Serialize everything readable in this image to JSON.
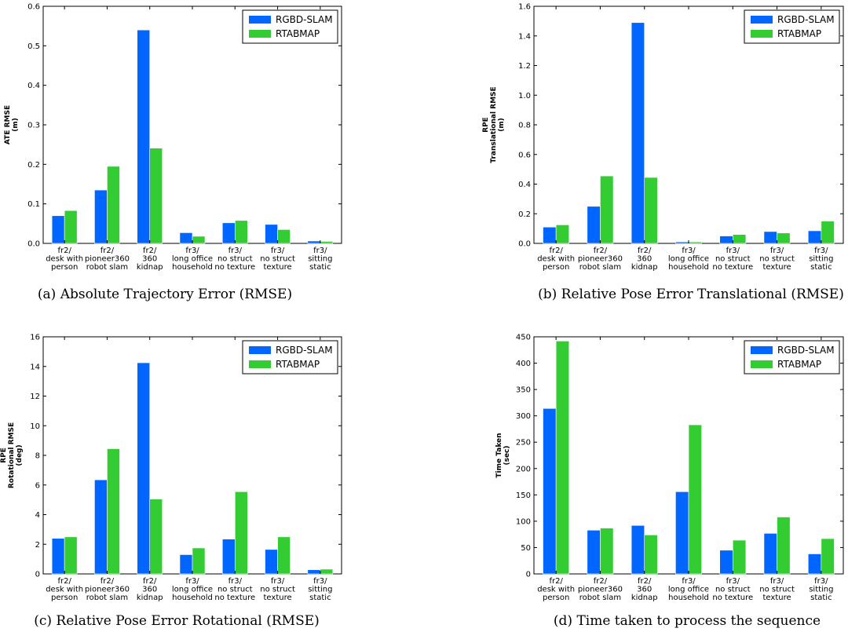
{
  "colors": {
    "rgbd": "#0066ff",
    "rtab": "#33cc33",
    "axis": "#000000",
    "background": "#ffffff"
  },
  "chart_data": [
    {
      "type": "bar",
      "caption": "(a) Absolute Trajectory Error (RMSE)",
      "ylabel": [
        "ATE RMSE",
        "(m)"
      ],
      "ylim": [
        0,
        0.6
      ],
      "yticks": [
        0.0,
        0.1,
        0.2,
        0.3,
        0.4,
        0.5,
        0.6
      ],
      "ytick_labels": [
        "0.0",
        "0.1",
        "0.2",
        "0.3",
        "0.4",
        "0.5",
        "0.6"
      ],
      "categories": [
        [
          "fr2/",
          "desk with",
          "person"
        ],
        [
          "fr2/",
          "pioneer360",
          "robot slam"
        ],
        [
          "fr2/",
          "360",
          "kidnap"
        ],
        [
          "fr3/",
          "long office",
          "household"
        ],
        [
          "fr3/",
          "no struct",
          "no texture"
        ],
        [
          "fr3/",
          "no struct",
          "texture"
        ],
        [
          "fr3/",
          "sitting",
          "static"
        ]
      ],
      "legend_position": "top-right",
      "series": [
        {
          "name": "RGBD-SLAM",
          "values": [
            0.07,
            0.135,
            0.54,
            0.027,
            0.052,
            0.048,
            0.006
          ]
        },
        {
          "name": "RTABMAP",
          "values": [
            0.083,
            0.195,
            0.241,
            0.018,
            0.058,
            0.035,
            0.005
          ]
        }
      ]
    },
    {
      "type": "bar",
      "caption": "(b) Relative Pose Error Translational (RMSE)",
      "ylabel": [
        "RPE",
        "Translational RMSE",
        "(m)"
      ],
      "ylim": [
        0,
        1.6
      ],
      "yticks": [
        0.0,
        0.2,
        0.4,
        0.6,
        0.8,
        1.0,
        1.2,
        1.4,
        1.6
      ],
      "ytick_labels": [
        "0.0",
        "0.2",
        "0.4",
        "0.6",
        "0.8",
        "1.0",
        "1.2",
        "1.4",
        "1.6"
      ],
      "categories": [
        [
          "fr2/",
          "desk with",
          "person"
        ],
        [
          "fr2/",
          "pioneer360",
          "robot slam"
        ],
        [
          "fr2/",
          "360",
          "kidnap"
        ],
        [
          "fr3/",
          "long office",
          "household"
        ],
        [
          "fr3/",
          "no struct",
          "no texture"
        ],
        [
          "fr3/",
          "no struct",
          "texture"
        ],
        [
          "fr3/",
          "sitting",
          "static"
        ]
      ],
      "legend_position": "top-right",
      "series": [
        {
          "name": "RGBD-SLAM",
          "values": [
            0.11,
            0.25,
            1.49,
            0.01,
            0.05,
            0.08,
            0.085
          ]
        },
        {
          "name": "RTABMAP",
          "values": [
            0.125,
            0.455,
            0.445,
            0.01,
            0.06,
            0.07,
            0.15
          ]
        }
      ]
    },
    {
      "type": "bar",
      "caption": "(c) Relative Pose Error Rotational (RMSE)",
      "ylabel": [
        "RPE",
        "Rotational RMSE",
        "(deg)"
      ],
      "ylim": [
        0,
        16
      ],
      "yticks": [
        0,
        2,
        4,
        6,
        8,
        10,
        12,
        14,
        16
      ],
      "ytick_labels": [
        "0",
        "2",
        "4",
        "6",
        "8",
        "10",
        "12",
        "14",
        "16"
      ],
      "categories": [
        [
          "fr2/",
          "desk with",
          "person"
        ],
        [
          "fr2/",
          "pioneer360",
          "robot slam"
        ],
        [
          "fr2/",
          "360",
          "kidnap"
        ],
        [
          "fr3/",
          "long office",
          "household"
        ],
        [
          "fr3/",
          "no struct",
          "no texture"
        ],
        [
          "fr3/",
          "no struct",
          "texture"
        ],
        [
          "fr3/",
          "sitting",
          "static"
        ]
      ],
      "legend_position": "top-right",
      "series": [
        {
          "name": "RGBD-SLAM",
          "values": [
            2.4,
            6.35,
            14.25,
            1.3,
            2.35,
            1.65,
            0.28
          ]
        },
        {
          "name": "RTABMAP",
          "values": [
            2.5,
            8.45,
            5.05,
            1.75,
            5.55,
            2.5,
            0.32
          ]
        }
      ]
    },
    {
      "type": "bar",
      "caption": "(d) Time taken to process the sequence",
      "ylabel": [
        "Time Taken",
        "(sec)"
      ],
      "ylim": [
        0,
        450
      ],
      "yticks": [
        0,
        50,
        100,
        150,
        200,
        250,
        300,
        350,
        400,
        450
      ],
      "ytick_labels": [
        "0",
        "50",
        "100",
        "150",
        "200",
        "250",
        "300",
        "350",
        "400",
        "450"
      ],
      "categories": [
        [
          "fr2/",
          "desk with",
          "person"
        ],
        [
          "fr2/",
          "pioneer360",
          "robot slam"
        ],
        [
          "fr2/",
          "360",
          "kidnap"
        ],
        [
          "fr3/",
          "long office",
          "household"
        ],
        [
          "fr3/",
          "no struct",
          "no texture"
        ],
        [
          "fr3/",
          "no struct",
          "texture"
        ],
        [
          "fr3/",
          "sitting",
          "static"
        ]
      ],
      "legend_position": "top-right",
      "series": [
        {
          "name": "RGBD-SLAM",
          "values": [
            314,
            83,
            92,
            156,
            45,
            77,
            38
          ]
        },
        {
          "name": "RTABMAP",
          "values": [
            442,
            87,
            74,
            283,
            64,
            108,
            67
          ]
        }
      ]
    }
  ]
}
